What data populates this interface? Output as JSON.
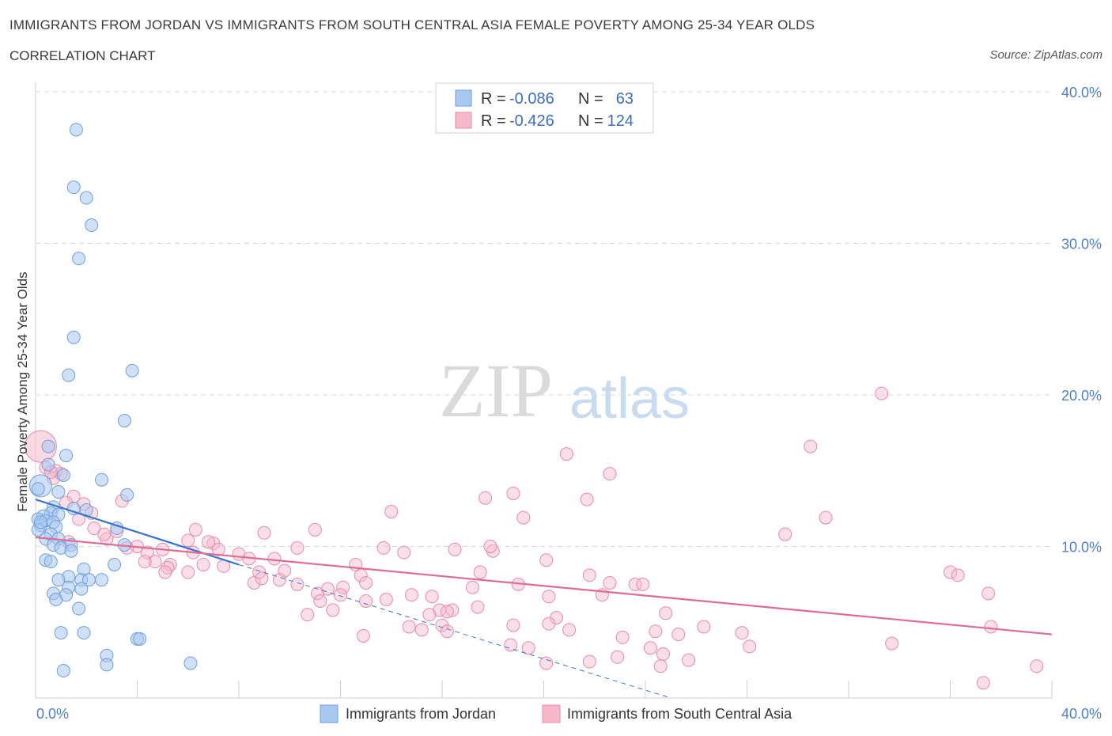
{
  "header": {
    "title": "IMMIGRANTS FROM JORDAN VS IMMIGRANTS FROM SOUTH CENTRAL ASIA FEMALE POVERTY AMONG 25-34 YEAR OLDS",
    "subtitle": "CORRELATION CHART",
    "source": "Source: ZipAtlas.com"
  },
  "watermark": {
    "zip": "ZIP",
    "atlas": "atlas"
  },
  "colors": {
    "jordan_fill": "#a9c8f0",
    "jordan_stroke": "#6d9ede",
    "jordan_line": "#3a74d0",
    "sca_fill": "#f6b9cc",
    "sca_stroke": "#e88aa8",
    "sca_line": "#e06c93",
    "tick": "#4f81c7",
    "grid": "#d9d9d9"
  },
  "chart_data": {
    "type": "scatter",
    "title": "IMMIGRANTS FROM JORDAN VS IMMIGRANTS FROM SOUTH CENTRAL ASIA FEMALE POVERTY AMONG 25-34 YEAR OLDS",
    "subtitle": "CORRELATION CHART",
    "xlabel": "",
    "ylabel": "Female Poverty Among 25-34 Year Olds",
    "xlim": [
      0,
      40
    ],
    "ylim": [
      0,
      40
    ],
    "x_tick_labels": [
      "0.0%",
      "40.0%"
    ],
    "y_ticks": [
      10,
      20,
      30,
      40
    ],
    "y_tick_labels": [
      "10.0%",
      "20.0%",
      "30.0%",
      "40.0%"
    ],
    "grid": true,
    "legend_position": "top-center",
    "legend_stats": [
      {
        "r_label": "R =",
        "r": "-0.086",
        "n_label": "N =",
        "n": "63"
      },
      {
        "r_label": "R =",
        "r": "-0.426",
        "n_label": "N =",
        "n": "124"
      }
    ],
    "series": [
      {
        "name": "Immigrants from Jordan",
        "trend": {
          "x": [
            0,
            8
          ],
          "y": [
            13.1,
            8.8
          ],
          "dashed_to": [
            25,
            0
          ]
        },
        "points": [
          [
            1.6,
            37.5
          ],
          [
            1.5,
            33.7
          ],
          [
            2.0,
            33.0
          ],
          [
            2.2,
            31.2
          ],
          [
            1.7,
            29.0
          ],
          [
            1.5,
            23.8
          ],
          [
            3.8,
            21.6
          ],
          [
            1.3,
            21.3
          ],
          [
            3.5,
            18.3
          ],
          [
            0.5,
            16.6
          ],
          [
            1.2,
            16.0
          ],
          [
            0.5,
            15.4
          ],
          [
            1.1,
            14.7
          ],
          [
            2.6,
            14.4
          ],
          [
            0.2,
            14.0
          ],
          [
            0.1,
            13.8
          ],
          [
            0.9,
            13.6
          ],
          [
            3.6,
            13.4
          ],
          [
            0.7,
            12.6
          ],
          [
            1.5,
            12.5
          ],
          [
            2.0,
            12.4
          ],
          [
            0.6,
            12.2
          ],
          [
            0.9,
            12.1
          ],
          [
            0.3,
            12.0
          ],
          [
            0.1,
            11.8
          ],
          [
            0.4,
            11.7
          ],
          [
            0.7,
            11.6
          ],
          [
            0.2,
            11.4
          ],
          [
            0.8,
            11.3
          ],
          [
            3.2,
            11.2
          ],
          [
            0.1,
            11.1
          ],
          [
            0.6,
            10.8
          ],
          [
            0.9,
            10.5
          ],
          [
            0.4,
            10.5
          ],
          [
            0.7,
            10.1
          ],
          [
            1.4,
            10.1
          ],
          [
            3.5,
            10.1
          ],
          [
            1.0,
            9.9
          ],
          [
            1.4,
            9.7
          ],
          [
            0.4,
            9.1
          ],
          [
            0.6,
            9.0
          ],
          [
            3.1,
            8.8
          ],
          [
            1.9,
            8.5
          ],
          [
            1.3,
            8.0
          ],
          [
            0.9,
            7.8
          ],
          [
            1.8,
            7.8
          ],
          [
            2.1,
            7.8
          ],
          [
            2.6,
            7.8
          ],
          [
            1.3,
            7.3
          ],
          [
            1.8,
            7.2
          ],
          [
            0.7,
            6.9
          ],
          [
            1.2,
            6.8
          ],
          [
            0.8,
            6.5
          ],
          [
            1.7,
            5.9
          ],
          [
            1.0,
            4.3
          ],
          [
            1.9,
            4.3
          ],
          [
            4.0,
            3.9
          ],
          [
            4.1,
            3.9
          ],
          [
            2.8,
            2.8
          ],
          [
            2.8,
            2.2
          ],
          [
            6.1,
            2.3
          ],
          [
            1.1,
            1.8
          ],
          [
            0.2,
            11.6
          ]
        ]
      },
      {
        "name": "Immigrants from South Central Asia",
        "trend": {
          "x": [
            0,
            40
          ],
          "y": [
            10.6,
            4.2
          ]
        },
        "points": [
          [
            0.2,
            16.6
          ],
          [
            0.4,
            15.2
          ],
          [
            0.8,
            15.0
          ],
          [
            1.0,
            14.8
          ],
          [
            0.7,
            14.5
          ],
          [
            0.6,
            14.9
          ],
          [
            1.5,
            13.3
          ],
          [
            3.4,
            13.0
          ],
          [
            1.2,
            12.9
          ],
          [
            1.9,
            12.8
          ],
          [
            2.2,
            12.2
          ],
          [
            1.7,
            11.8
          ],
          [
            2.3,
            11.2
          ],
          [
            3.2,
            11.0
          ],
          [
            6.3,
            11.1
          ],
          [
            2.8,
            10.5
          ],
          [
            4.0,
            10.0
          ],
          [
            6.0,
            10.4
          ],
          [
            7.0,
            10.2
          ],
          [
            1.3,
            10.3
          ],
          [
            3.6,
            9.9
          ],
          [
            4.4,
            9.6
          ],
          [
            5.0,
            9.8
          ],
          [
            7.2,
            9.8
          ],
          [
            6.2,
            9.6
          ],
          [
            8.0,
            9.5
          ],
          [
            8.4,
            9.2
          ],
          [
            9.4,
            9.2
          ],
          [
            4.7,
            9.0
          ],
          [
            4.3,
            9.0
          ],
          [
            5.3,
            8.8
          ],
          [
            6.6,
            8.8
          ],
          [
            5.2,
            8.6
          ],
          [
            7.4,
            8.7
          ],
          [
            6.0,
            8.3
          ],
          [
            5.1,
            8.3
          ],
          [
            8.8,
            8.3
          ],
          [
            9.8,
            8.4
          ],
          [
            10.3,
            9.9
          ],
          [
            9.0,
            10.9
          ],
          [
            11.0,
            11.1
          ],
          [
            14.0,
            12.3
          ],
          [
            13.7,
            9.9
          ],
          [
            14.5,
            9.6
          ],
          [
            12.6,
            8.8
          ],
          [
            12.8,
            8.1
          ],
          [
            13.0,
            7.6
          ],
          [
            10.3,
            7.5
          ],
          [
            8.6,
            7.6
          ],
          [
            8.9,
            7.9
          ],
          [
            9.6,
            7.8
          ],
          [
            11.5,
            7.2
          ],
          [
            12.1,
            7.3
          ],
          [
            11.1,
            6.9
          ],
          [
            11.2,
            6.4
          ],
          [
            12.0,
            6.8
          ],
          [
            13.8,
            6.5
          ],
          [
            13.0,
            6.4
          ],
          [
            10.7,
            5.5
          ],
          [
            11.7,
            5.8
          ],
          [
            14.8,
            6.8
          ],
          [
            15.6,
            6.7
          ],
          [
            16.4,
            5.8
          ],
          [
            15.9,
            5.8
          ],
          [
            14.7,
            4.7
          ],
          [
            15.2,
            4.5
          ],
          [
            16.0,
            4.8
          ],
          [
            16.2,
            4.4
          ],
          [
            12.9,
            4.1
          ],
          [
            17.7,
            13.2
          ],
          [
            18.8,
            13.5
          ],
          [
            19.2,
            11.9
          ],
          [
            18.0,
            9.7
          ],
          [
            17.5,
            8.3
          ],
          [
            16.5,
            9.8
          ],
          [
            17.9,
            10.0
          ],
          [
            20.1,
            9.1
          ],
          [
            17.2,
            7.3
          ],
          [
            19.0,
            7.5
          ],
          [
            17.4,
            6.0
          ],
          [
            20.2,
            6.7
          ],
          [
            20.5,
            5.3
          ],
          [
            20.2,
            4.9
          ],
          [
            21.0,
            4.5
          ],
          [
            18.8,
            4.8
          ],
          [
            18.7,
            3.5
          ],
          [
            19.4,
            3.3
          ],
          [
            20.1,
            2.3
          ],
          [
            20.9,
            16.1
          ],
          [
            21.7,
            13.1
          ],
          [
            22.6,
            14.8
          ],
          [
            21.8,
            8.1
          ],
          [
            22.6,
            7.6
          ],
          [
            23.6,
            7.5
          ],
          [
            23.9,
            7.5
          ],
          [
            22.3,
            6.8
          ],
          [
            24.8,
            5.6
          ],
          [
            23.1,
            4.0
          ],
          [
            21.8,
            2.4
          ],
          [
            22.9,
            2.7
          ],
          [
            24.4,
            4.4
          ],
          [
            25.3,
            4.2
          ],
          [
            24.2,
            3.3
          ],
          [
            24.7,
            2.9
          ],
          [
            24.6,
            2.1
          ],
          [
            25.7,
            2.5
          ],
          [
            26.3,
            4.7
          ],
          [
            27.8,
            4.3
          ],
          [
            28.1,
            3.4
          ],
          [
            29.5,
            10.8
          ],
          [
            30.5,
            16.6
          ],
          [
            31.1,
            11.9
          ],
          [
            33.3,
            20.1
          ],
          [
            33.7,
            3.6
          ],
          [
            36.0,
            8.3
          ],
          [
            36.3,
            8.1
          ],
          [
            37.5,
            6.9
          ],
          [
            37.6,
            4.7
          ],
          [
            37.3,
            1.0
          ],
          [
            39.4,
            2.1
          ],
          [
            2.7,
            10.8
          ],
          [
            16.2,
            5.7
          ],
          [
            6.8,
            10.3
          ],
          [
            15.5,
            5.5
          ]
        ]
      }
    ]
  },
  "legend": {
    "items": [
      {
        "label": "Immigrants from Jordan"
      },
      {
        "label": "Immigrants from South Central Asia"
      }
    ]
  }
}
